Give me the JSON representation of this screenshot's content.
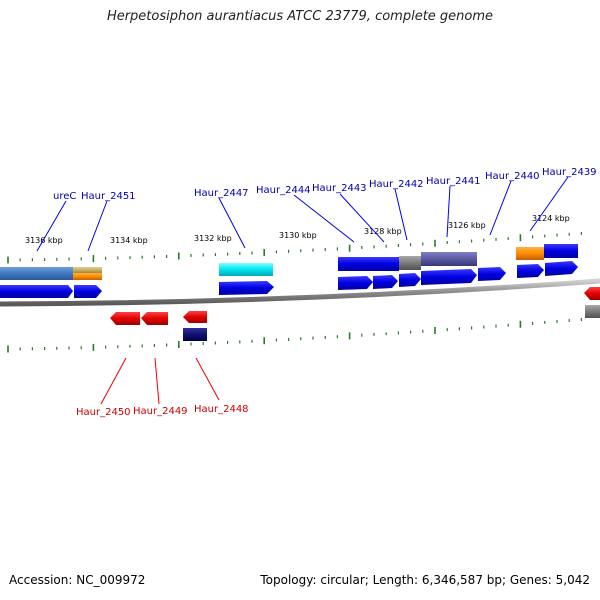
{
  "title": "Herpetosiphon aurantiacus ATCC 23779, complete genome",
  "footer": {
    "accession": "Accession: NC_009972",
    "summary": "Topology: circular; Length: 6,346,587 bp; Genes: 5,042"
  },
  "scale_labels": [
    "3136 kbp",
    "3134 kbp",
    "3132 kbp",
    "3130 kbp",
    "3128 kbp",
    "3126 kbp",
    "3124 kbp"
  ],
  "forward_gene_labels": [
    "ureC",
    "Haur_2451",
    "Haur_2447",
    "Haur_2444",
    "Haur_2443",
    "Haur_2442",
    "Haur_2441",
    "Haur_2440",
    "Haur_2439"
  ],
  "reverse_gene_labels": [
    "Haur_2450",
    "Haur_2449",
    "Haur_2448"
  ],
  "colors": {
    "forward_gene": "#1010e8",
    "reverse_gene": "#e81010",
    "backbone": "#808080",
    "tick": "#2a7a2a",
    "fwd_label": "#0000aa",
    "rev_label": "#cc0000"
  }
}
